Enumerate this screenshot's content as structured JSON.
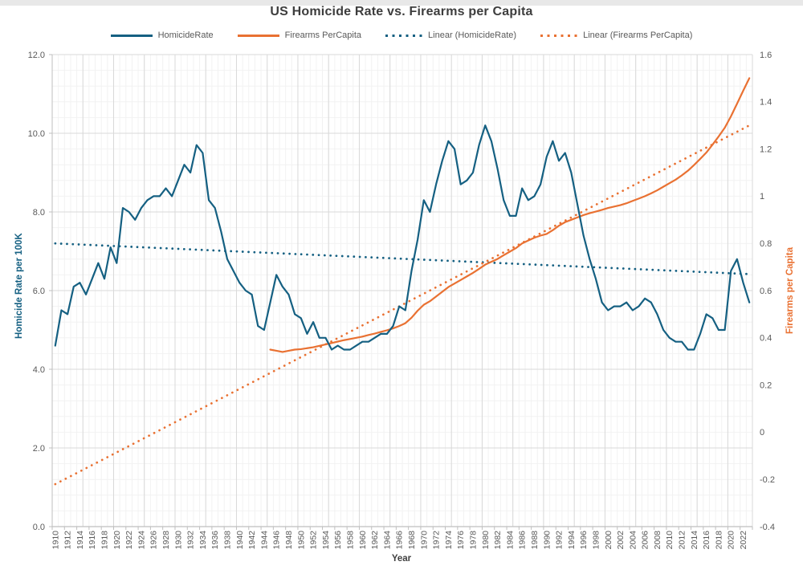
{
  "title": "US Homicide Rate vs. Firearms per Capita",
  "legend": [
    {
      "label": "HomicideRate",
      "style": "solid",
      "color": "#156082"
    },
    {
      "label": "Firearms PerCapita",
      "style": "solid",
      "color": "#E97132"
    },
    {
      "label": "Linear (HomicideRate)",
      "style": "dotted",
      "color": "#156082"
    },
    {
      "label": "Linear (Firearms PerCapita)",
      "style": "dotted",
      "color": "#E97132"
    }
  ],
  "colors": {
    "homicide": "#156082",
    "firearms": "#E97132",
    "title_text": "#3d3d3d",
    "tick_text": "#595959",
    "axis_line": "#bfbfbf",
    "grid_major": "#d9d9d9",
    "grid_minor": "#f2f2f2"
  },
  "chart_data": {
    "type": "line",
    "title": "US Homicide Rate vs. Firearms per Capita",
    "xlabel": "Year",
    "y_left": {
      "title": "Homicide Rate per 100K",
      "min": 0,
      "max": 12,
      "major": 2,
      "minor": 0.4,
      "tick_labels": [
        "0.0",
        "2.0",
        "4.0",
        "6.0",
        "8.0",
        "10.0",
        "12.0"
      ]
    },
    "y_right": {
      "title": "Firearms per Capita",
      "min": -0.4,
      "max": 1.6,
      "major": 0.2,
      "tick_labels": [
        "-0.4",
        "-0.2",
        "0",
        "0.2",
        "0.4",
        "0.6",
        "0.8",
        "1",
        "1.2",
        "1.4",
        "1.6"
      ]
    },
    "x": {
      "start": 1910,
      "end": 2023,
      "count": 114,
      "label_interval": 2,
      "major_grid_interval": 5,
      "minor_grid_interval": 1,
      "tick_labels": [
        "1910",
        "1912",
        "1914",
        "1916",
        "1918",
        "1920",
        "1922",
        "1924",
        "1926",
        "1928",
        "1930",
        "1932",
        "1934",
        "1936",
        "1938",
        "1940",
        "1942",
        "1944",
        "1946",
        "1948",
        "1950",
        "1952",
        "1954",
        "1956",
        "1958",
        "1960",
        "1962",
        "1964",
        "1966",
        "1968",
        "1970",
        "1972",
        "1974",
        "1976",
        "1978",
        "1980",
        "1982",
        "1984",
        "1986",
        "1988",
        "1990",
        "1992",
        "1994",
        "1996",
        "1998",
        "2000",
        "2002",
        "2004",
        "2006",
        "2008",
        "2010",
        "2012",
        "2014",
        "2016",
        "2018",
        "2020",
        "2022"
      ]
    },
    "series": [
      {
        "name": "HomicideRate",
        "axis": "left",
        "style": "solid",
        "color": "#156082",
        "start_year": 1910,
        "values": [
          4.6,
          5.5,
          5.4,
          6.1,
          6.2,
          5.9,
          6.3,
          6.7,
          6.3,
          7.1,
          6.7,
          8.1,
          8.0,
          7.8,
          8.1,
          8.3,
          8.4,
          8.4,
          8.6,
          8.4,
          8.8,
          9.2,
          9.0,
          9.7,
          9.5,
          8.3,
          8.1,
          7.5,
          6.8,
          6.5,
          6.2,
          6.0,
          5.9,
          5.1,
          5.0,
          5.7,
          6.4,
          6.1,
          5.9,
          5.4,
          5.3,
          4.9,
          5.2,
          4.8,
          4.8,
          4.5,
          4.6,
          4.5,
          4.5,
          4.6,
          4.7,
          4.7,
          4.8,
          4.9,
          4.9,
          5.1,
          5.6,
          5.5,
          6.5,
          7.3,
          8.3,
          8.0,
          8.7,
          9.3,
          9.8,
          9.6,
          8.7,
          8.8,
          9.0,
          9.7,
          10.2,
          9.8,
          9.1,
          8.3,
          7.9,
          7.9,
          8.6,
          8.3,
          8.4,
          8.7,
          9.4,
          9.8,
          9.3,
          9.5,
          9.0,
          8.2,
          7.4,
          6.8,
          6.3,
          5.7,
          5.5,
          5.6,
          5.6,
          5.7,
          5.5,
          5.6,
          5.8,
          5.7,
          5.4,
          5.0,
          4.8,
          4.7,
          4.7,
          4.5,
          4.5,
          4.9,
          5.4,
          5.3,
          5.0,
          5.0,
          6.5,
          6.8,
          6.2,
          5.7
        ]
      },
      {
        "name": "Firearms PerCapita",
        "axis": "right",
        "style": "solid",
        "color": "#E97132",
        "start_year": 1945,
        "values": [
          0.35,
          0.345,
          0.34,
          0.345,
          0.35,
          0.352,
          0.356,
          0.36,
          0.366,
          0.372,
          0.378,
          0.384,
          0.39,
          0.395,
          0.4,
          0.405,
          0.412,
          0.418,
          0.425,
          0.432,
          0.44,
          0.45,
          0.462,
          0.485,
          0.515,
          0.54,
          0.555,
          0.575,
          0.595,
          0.615,
          0.63,
          0.645,
          0.66,
          0.675,
          0.692,
          0.71,
          0.722,
          0.734,
          0.75,
          0.765,
          0.78,
          0.8,
          0.812,
          0.824,
          0.833,
          0.84,
          0.856,
          0.875,
          0.89,
          0.9,
          0.91,
          0.92,
          0.928,
          0.935,
          0.942,
          0.95,
          0.956,
          0.962,
          0.97,
          0.98,
          0.99,
          1.0,
          1.012,
          1.025,
          1.04,
          1.055,
          1.07,
          1.088,
          1.108,
          1.132,
          1.158,
          1.185,
          1.218,
          1.253,
          1.29,
          1.338,
          1.392,
          1.447,
          1.5
        ]
      },
      {
        "name": "Linear (HomicideRate)",
        "axis": "left",
        "style": "dotted",
        "color": "#156082",
        "trend": {
          "x0": 1910,
          "y0": 7.2,
          "x1": 2023,
          "y1": 6.42
        }
      },
      {
        "name": "Linear (Firearms PerCapita)",
        "axis": "right",
        "style": "dotted",
        "color": "#E97132",
        "trend": {
          "x0": 1910,
          "y0": -0.22,
          "x1": 2023,
          "y1": 1.3
        }
      }
    ]
  }
}
